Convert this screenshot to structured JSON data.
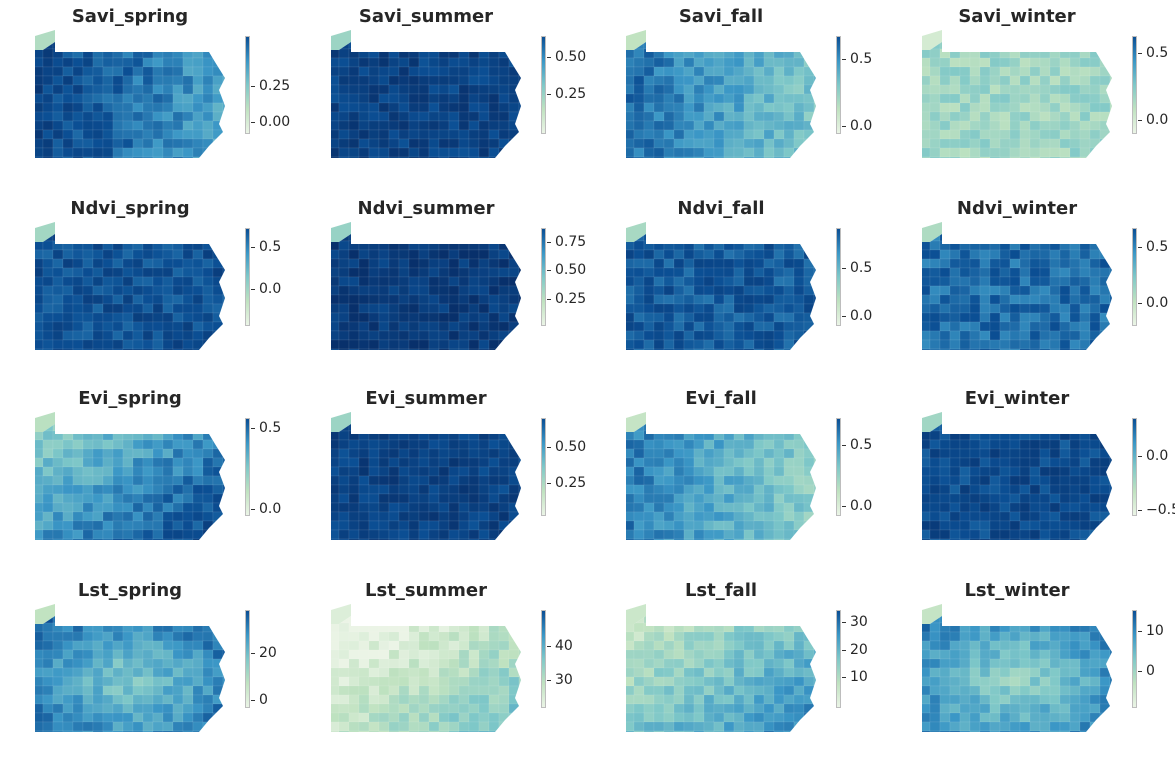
{
  "panels": [
    {
      "title": "Savi_spring",
      "ticks": [
        "0.25",
        "0.00"
      ],
      "tickFrac": [
        0.52,
        0.9
      ],
      "tone": 0.7,
      "variation": "west-dark"
    },
    {
      "title": "Savi_summer",
      "ticks": [
        "0.50",
        "0.25"
      ],
      "tickFrac": [
        0.22,
        0.6
      ],
      "tone": 0.88,
      "variation": "uniform"
    },
    {
      "title": "Savi_fall",
      "ticks": [
        "0.5",
        "0.0"
      ],
      "tickFrac": [
        0.24,
        0.94
      ],
      "tone": 0.55,
      "variation": "west-dark"
    },
    {
      "title": "Savi_winter",
      "ticks": [
        "0.5",
        "0.0"
      ],
      "tickFrac": [
        0.18,
        0.88
      ],
      "tone": 0.3,
      "variation": "uniform"
    },
    {
      "title": "Ndvi_spring",
      "ticks": [
        "0.5",
        "0.0"
      ],
      "tickFrac": [
        0.2,
        0.64
      ],
      "tone": 0.82,
      "variation": "uniform"
    },
    {
      "title": "Ndvi_summer",
      "ticks": [
        "0.75",
        "0.50",
        "0.25"
      ],
      "tickFrac": [
        0.15,
        0.44,
        0.74
      ],
      "tone": 0.93,
      "variation": "uniform"
    },
    {
      "title": "Ndvi_fall",
      "ticks": [
        "0.5",
        "0.0"
      ],
      "tickFrac": [
        0.42,
        0.92
      ],
      "tone": 0.78,
      "variation": "uniform"
    },
    {
      "title": "Ndvi_winter",
      "ticks": [
        "0.5",
        "0.0"
      ],
      "tickFrac": [
        0.2,
        0.78
      ],
      "tone": 0.72,
      "variation": "uniform"
    },
    {
      "title": "Evi_spring",
      "ticks": [
        "0.5",
        "0.0"
      ],
      "tickFrac": [
        0.1,
        0.95
      ],
      "tone": 0.62,
      "variation": "southeast-dark"
    },
    {
      "title": "Evi_summer",
      "ticks": [
        "0.50",
        "0.25"
      ],
      "tickFrac": [
        0.3,
        0.68
      ],
      "tone": 0.88,
      "variation": "uniform"
    },
    {
      "title": "Evi_fall",
      "ticks": [
        "0.5",
        "0.0"
      ],
      "tickFrac": [
        0.28,
        0.92
      ],
      "tone": 0.5,
      "variation": "west-dark"
    },
    {
      "title": "Evi_winter",
      "ticks": [
        "0.0",
        "−0.5"
      ],
      "tickFrac": [
        0.4,
        0.96
      ],
      "tone": 0.84,
      "variation": "uniform"
    },
    {
      "title": "Lst_spring",
      "ticks": [
        "20",
        "0"
      ],
      "tickFrac": [
        0.45,
        0.94
      ],
      "tone": 0.55,
      "variation": "center-light"
    },
    {
      "title": "Lst_summer",
      "ticks": [
        "40",
        "30"
      ],
      "tickFrac": [
        0.38,
        0.73
      ],
      "tone": 0.2,
      "variation": "southeast-dark"
    },
    {
      "title": "Lst_fall",
      "ticks": [
        "30",
        "20",
        "10"
      ],
      "tickFrac": [
        0.12,
        0.42,
        0.7
      ],
      "tone": 0.42,
      "variation": "southeast-dark"
    },
    {
      "title": "Lst_winter",
      "ticks": [
        "10",
        "0"
      ],
      "tickFrac": [
        0.22,
        0.64
      ],
      "tone": 0.5,
      "variation": "center-light"
    }
  ]
}
